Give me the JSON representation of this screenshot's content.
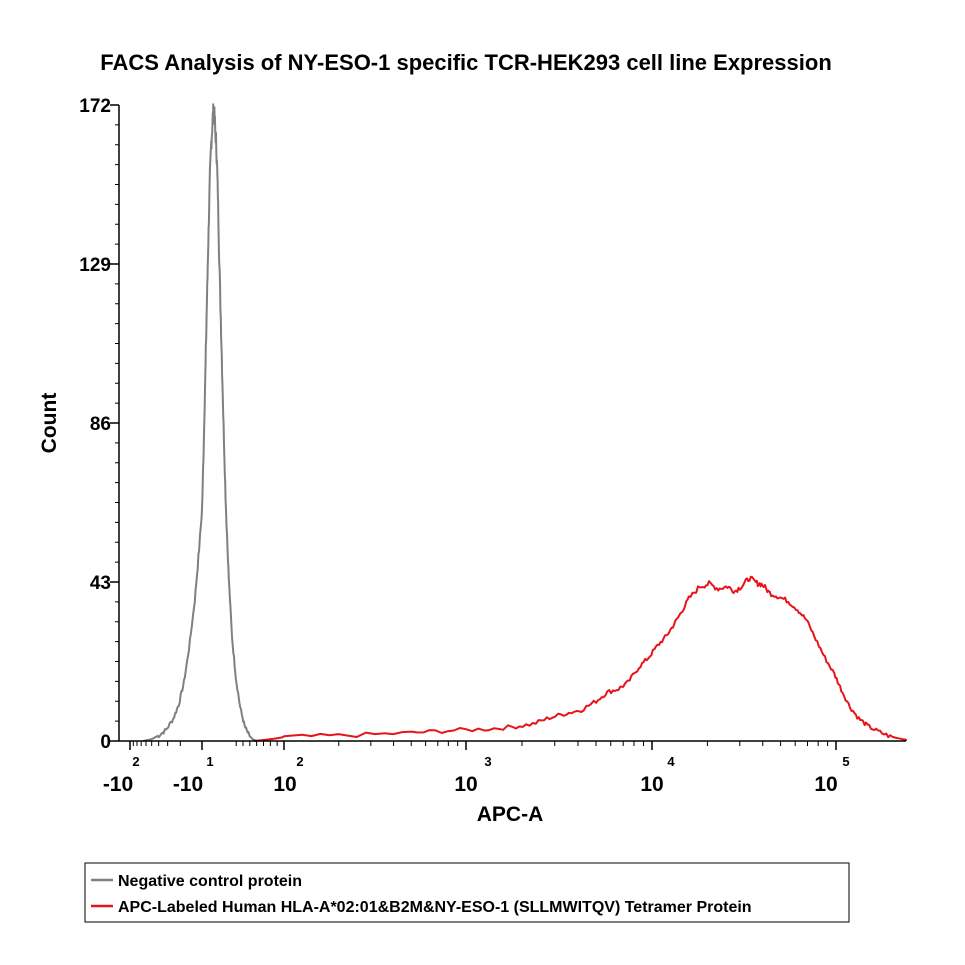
{
  "chart_data": {
    "type": "line",
    "subtype": "flow-cytometry-histogram",
    "title": "FACS Analysis of NY-ESO-1 specific TCR-HEK293 cell line Expression",
    "xlabel": "APC-A",
    "ylabel": "Count",
    "x_scale": "biexponential",
    "ylim": [
      0,
      172
    ],
    "y_ticks": [
      "0",
      "43",
      "86",
      "129",
      "172"
    ],
    "x_ticks": [
      {
        "base": "-10",
        "exp": "2",
        "decade": -2
      },
      {
        "base": "-10",
        "exp": "1",
        "decade": -1
      },
      {
        "base": "10",
        "exp": "2",
        "decade": 2
      },
      {
        "base": "10",
        "exp": "3",
        "decade": 3
      },
      {
        "base": "10",
        "exp": "4",
        "decade": 4
      },
      {
        "base": "10",
        "exp": "5",
        "decade": 5
      }
    ],
    "legend_position": "bottom-left",
    "series": [
      {
        "name": "Negative control protein",
        "color": "#808080",
        "points": [
          [
            -1.82,
            0
          ],
          [
            -1.7,
            0.5
          ],
          [
            -1.6,
            1.5
          ],
          [
            -1.5,
            3
          ],
          [
            -1.4,
            6
          ],
          [
            -1.32,
            10
          ],
          [
            -1.25,
            16
          ],
          [
            -1.18,
            25
          ],
          [
            -1.1,
            38
          ],
          [
            -1.04,
            52
          ],
          [
            -0.97,
            70
          ],
          [
            -0.9,
            92
          ],
          [
            -0.84,
            112
          ],
          [
            -0.78,
            132
          ],
          [
            -0.72,
            150
          ],
          [
            -0.66,
            162
          ],
          [
            -0.61,
            168
          ],
          [
            -0.57,
            171
          ],
          [
            -0.52,
            166
          ],
          [
            -0.47,
            160
          ],
          [
            -0.42,
            148
          ],
          [
            -0.36,
            128
          ],
          [
            -0.29,
            108
          ],
          [
            -0.21,
            85
          ],
          [
            -0.12,
            62
          ],
          [
            -0.02,
            44
          ],
          [
            0.1,
            28
          ],
          [
            0.24,
            17
          ],
          [
            0.4,
            9
          ],
          [
            0.56,
            4
          ],
          [
            0.72,
            1.5
          ],
          [
            0.86,
            0.5
          ],
          [
            1.0,
            0
          ]
        ]
      },
      {
        "name": "APC-Labeled Human HLA-A*02:01&B2M&NY-ESO-1 (SLLMWITQV) Tetramer Protein",
        "color": "#e8141c",
        "points": [
          [
            0.9,
            0
          ],
          [
            1.3,
            0.3
          ],
          [
            1.8,
            0.8
          ],
          [
            2.1,
            1.2
          ],
          [
            2.4,
            1.6
          ],
          [
            2.7,
            2.2
          ],
          [
            2.9,
            2.8
          ],
          [
            3.1,
            3.2
          ],
          [
            3.25,
            3.8
          ],
          [
            3.36,
            4.6
          ],
          [
            3.45,
            6.3
          ],
          [
            3.54,
            7.5
          ],
          [
            3.62,
            8.4
          ],
          [
            3.7,
            10.8
          ],
          [
            3.76,
            13.2
          ],
          [
            3.82,
            14.1
          ],
          [
            3.87,
            15.8
          ],
          [
            3.93,
            20
          ],
          [
            3.98,
            22.5
          ],
          [
            4.03,
            25.8
          ],
          [
            4.08,
            28.5
          ],
          [
            4.12,
            31.6
          ],
          [
            4.16,
            34.9
          ],
          [
            4.2,
            38.5
          ],
          [
            4.26,
            41.8
          ],
          [
            4.31,
            42.5
          ],
          [
            4.36,
            41.2
          ],
          [
            4.41,
            41.8
          ],
          [
            4.45,
            40.5
          ],
          [
            4.49,
            42
          ],
          [
            4.53,
            44.1
          ],
          [
            4.57,
            42.7
          ],
          [
            4.6,
            42.3
          ],
          [
            4.64,
            40
          ],
          [
            4.69,
            39
          ],
          [
            4.74,
            37.8
          ],
          [
            4.79,
            35.6
          ],
          [
            4.84,
            32.7
          ],
          [
            4.89,
            27.5
          ],
          [
            4.94,
            22.5
          ],
          [
            4.99,
            18.2
          ],
          [
            5.03,
            13.9
          ],
          [
            5.08,
            9.2
          ],
          [
            5.13,
            6.1
          ],
          [
            5.18,
            4.1
          ],
          [
            5.24,
            2.6
          ],
          [
            5.31,
            1.2
          ],
          [
            5.38,
            0.5
          ],
          [
            5.46,
            0
          ]
        ]
      }
    ]
  }
}
